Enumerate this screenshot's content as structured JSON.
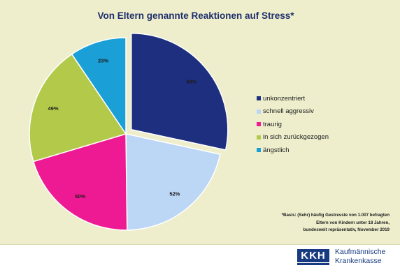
{
  "chart_data": {
    "type": "pie",
    "title": "Von Eltern genannte Reaktionen auf Stress*",
    "categories": [
      "unkonzentriert",
      "schnell aggressiv",
      "traurig",
      "in sich zurückgezogen",
      "ängstlich"
    ],
    "values": [
      69,
      52,
      50,
      49,
      23
    ],
    "value_labels": [
      "69%",
      "52%",
      "50%",
      "49%",
      "23%"
    ],
    "colors": [
      "#1d2f7e",
      "#bcd6f6",
      "#ee1a93",
      "#b3c94a",
      "#1a9fd7"
    ],
    "exploded_slice": "unkonzentriert",
    "legend_position": "right"
  },
  "footnote": {
    "line1": "*Basis: (Sehr) häufig Gestresste von 1.007 befragten",
    "line2": "Eltern von Kindern unter 18 Jahren,",
    "line3": "bundesweit repräsentativ, November 2019"
  },
  "logo": {
    "mark": "KKH",
    "line1": "Kaufmännische",
    "line2": "Krankenkasse"
  }
}
